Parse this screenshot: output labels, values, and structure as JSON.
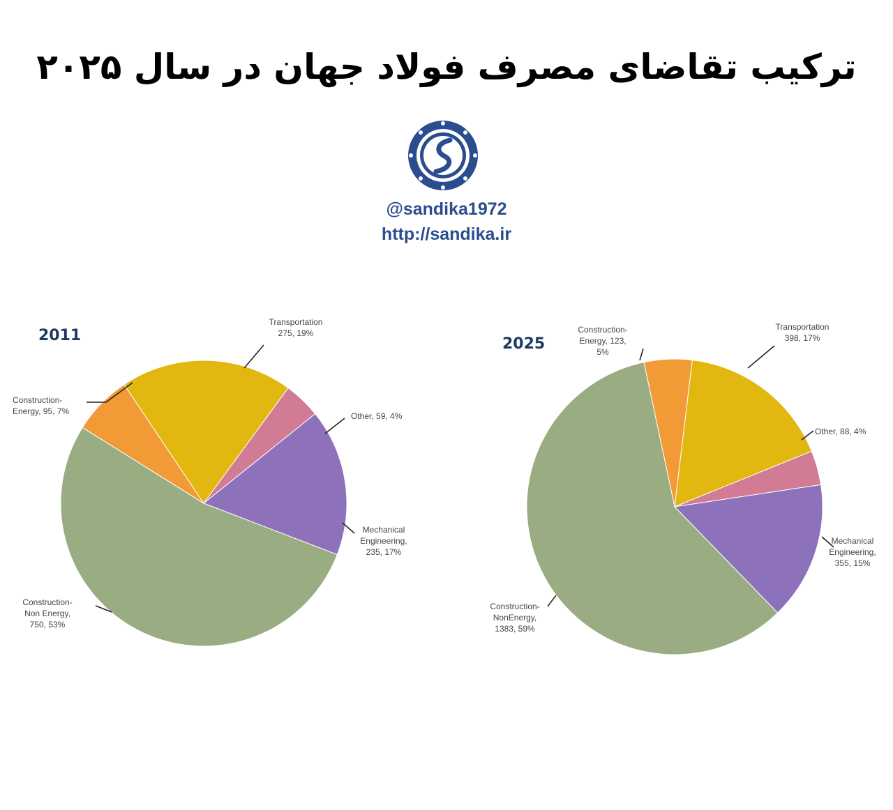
{
  "title": "ترکیب تقاضای مصرف فولاد جهان در سال ۲۰۲۵",
  "branding": {
    "handle": "@sandika1972",
    "site": "http://sandika.ir",
    "logo_icon": "sandika-logo-icon"
  },
  "colors": {
    "construction_energy": "#f29a35",
    "transportation": "#e1b710",
    "other": "#d17b95",
    "mechanical": "#8d72bb",
    "construction_non_energy": "#9aac82"
  },
  "chart_data": [
    {
      "type": "pie",
      "title": "2011",
      "slices": [
        {
          "key": "construction_energy",
          "label_lines": [
            "Construction-",
            "Energy, 95, 7%"
          ],
          "value": 95,
          "percent": 7
        },
        {
          "key": "transportation",
          "label_lines": [
            "Transportation",
            "275, 19%"
          ],
          "value": 275,
          "percent": 19
        },
        {
          "key": "other",
          "label_lines": [
            "Other, 59, 4%"
          ],
          "value": 59,
          "percent": 4
        },
        {
          "key": "mechanical",
          "label_lines": [
            "Mechanical",
            "Engineering,",
            "235, 17%"
          ],
          "value": 235,
          "percent": 17
        },
        {
          "key": "construction_non_energy",
          "label_lines": [
            "Construction-",
            "Non Energy,",
            "750, 53%"
          ],
          "value": 750,
          "percent": 53
        }
      ]
    },
    {
      "type": "pie",
      "title": "2025",
      "slices": [
        {
          "key": "construction_energy",
          "label_lines": [
            "Construction-",
            "Energy, 123,",
            "5%"
          ],
          "value": 123,
          "percent": 5
        },
        {
          "key": "transportation",
          "label_lines": [
            "Transportation",
            "398, 17%"
          ],
          "value": 398,
          "percent": 17
        },
        {
          "key": "other",
          "label_lines": [
            "Other, 88, 4%"
          ],
          "value": 88,
          "percent": 4
        },
        {
          "key": "mechanical",
          "label_lines": [
            "Mechanical",
            "Engineering,",
            "355, 15%"
          ],
          "value": 355,
          "percent": 15
        },
        {
          "key": "construction_non_energy",
          "label_lines": [
            "Construction-",
            "NonEnergy,",
            "1383, 59%"
          ],
          "value": 1383,
          "percent": 59
        }
      ]
    }
  ]
}
